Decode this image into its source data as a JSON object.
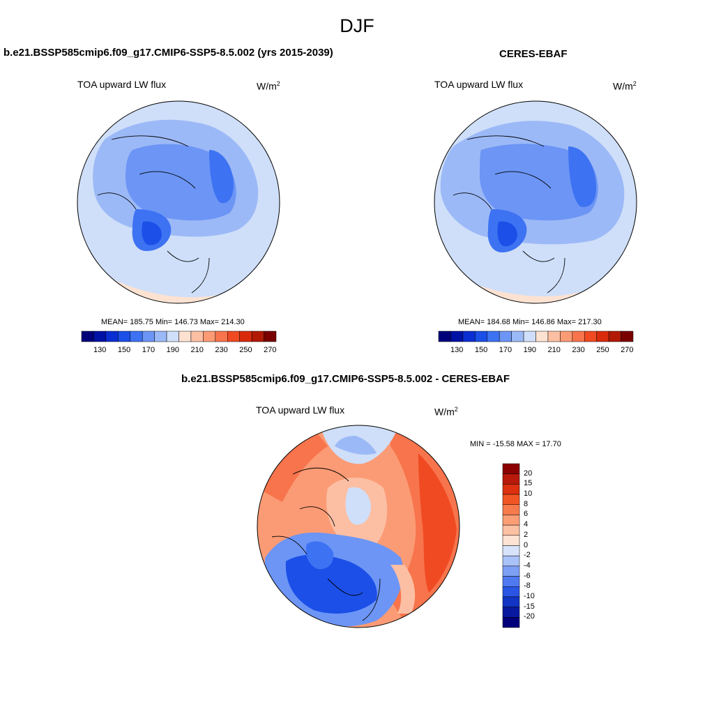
{
  "title": "DJF",
  "panels": [
    {
      "name": "model",
      "title": "b.e21.BSSP585cmip6.f09_g17.CMIP6-SSP5-8.5.002 (yrs 2015-2039)",
      "variable": "TOA upward LW flux",
      "units_base": "W/m",
      "units_exp": "2",
      "stats": "MEAN= 185.75  Min= 146.73  Max= 214.30",
      "colorbar": {
        "colors": [
          "#00007a",
          "#0011a6",
          "#0a2ed1",
          "#1b4fe8",
          "#3d72f2",
          "#6c95f5",
          "#9cb9f7",
          "#cfdff9",
          "#fde2d2",
          "#fcbfa3",
          "#fb9b75",
          "#f7744c",
          "#f04a23",
          "#d92b0c",
          "#b21a05",
          "#7a0000"
        ],
        "tick_labels": [
          "130",
          "150",
          "170",
          "190",
          "210",
          "230",
          "250",
          "270"
        ]
      }
    },
    {
      "name": "obs",
      "title": "CERES-EBAF",
      "variable": "TOA upward LW flux",
      "units_base": "W/m",
      "units_exp": "2",
      "stats": "MEAN= 184.68  Min= 146.86  Max= 217.30",
      "colorbar": {
        "colors": [
          "#00007a",
          "#0011a6",
          "#0a2ed1",
          "#1b4fe8",
          "#3d72f2",
          "#6c95f5",
          "#9cb9f7",
          "#cfdff9",
          "#fde2d2",
          "#fcbfa3",
          "#fb9b75",
          "#f7744c",
          "#f04a23",
          "#d92b0c",
          "#b21a05",
          "#7a0000"
        ],
        "tick_labels": [
          "130",
          "150",
          "170",
          "190",
          "210",
          "230",
          "250",
          "270"
        ]
      }
    },
    {
      "name": "diff",
      "title": "b.e21.BSSP585cmip6.f09_g17.CMIP6-SSP5-8.5.002 - CERES-EBAF",
      "variable": "TOA upward LW flux",
      "units_base": "W/m",
      "units_exp": "2",
      "stats": "MIN = -15.58 MAX =  17.70",
      "colorbar": {
        "colors": [
          "#8b0000",
          "#b8190a",
          "#dc3010",
          "#f25524",
          "#f77a4c",
          "#fb9d75",
          "#fcc0a2",
          "#fde3d3",
          "#d7e3fb",
          "#a9c2f8",
          "#7d9ff4",
          "#4f79ef",
          "#2a55e4",
          "#1234c4",
          "#0819a0",
          "#00007a"
        ],
        "tick_labels": [
          "20",
          "15",
          "10",
          "8",
          "6",
          "4",
          "2",
          "0",
          "-2",
          "-4",
          "-6",
          "-8",
          "-10",
          "-15",
          "-20"
        ]
      }
    }
  ]
}
